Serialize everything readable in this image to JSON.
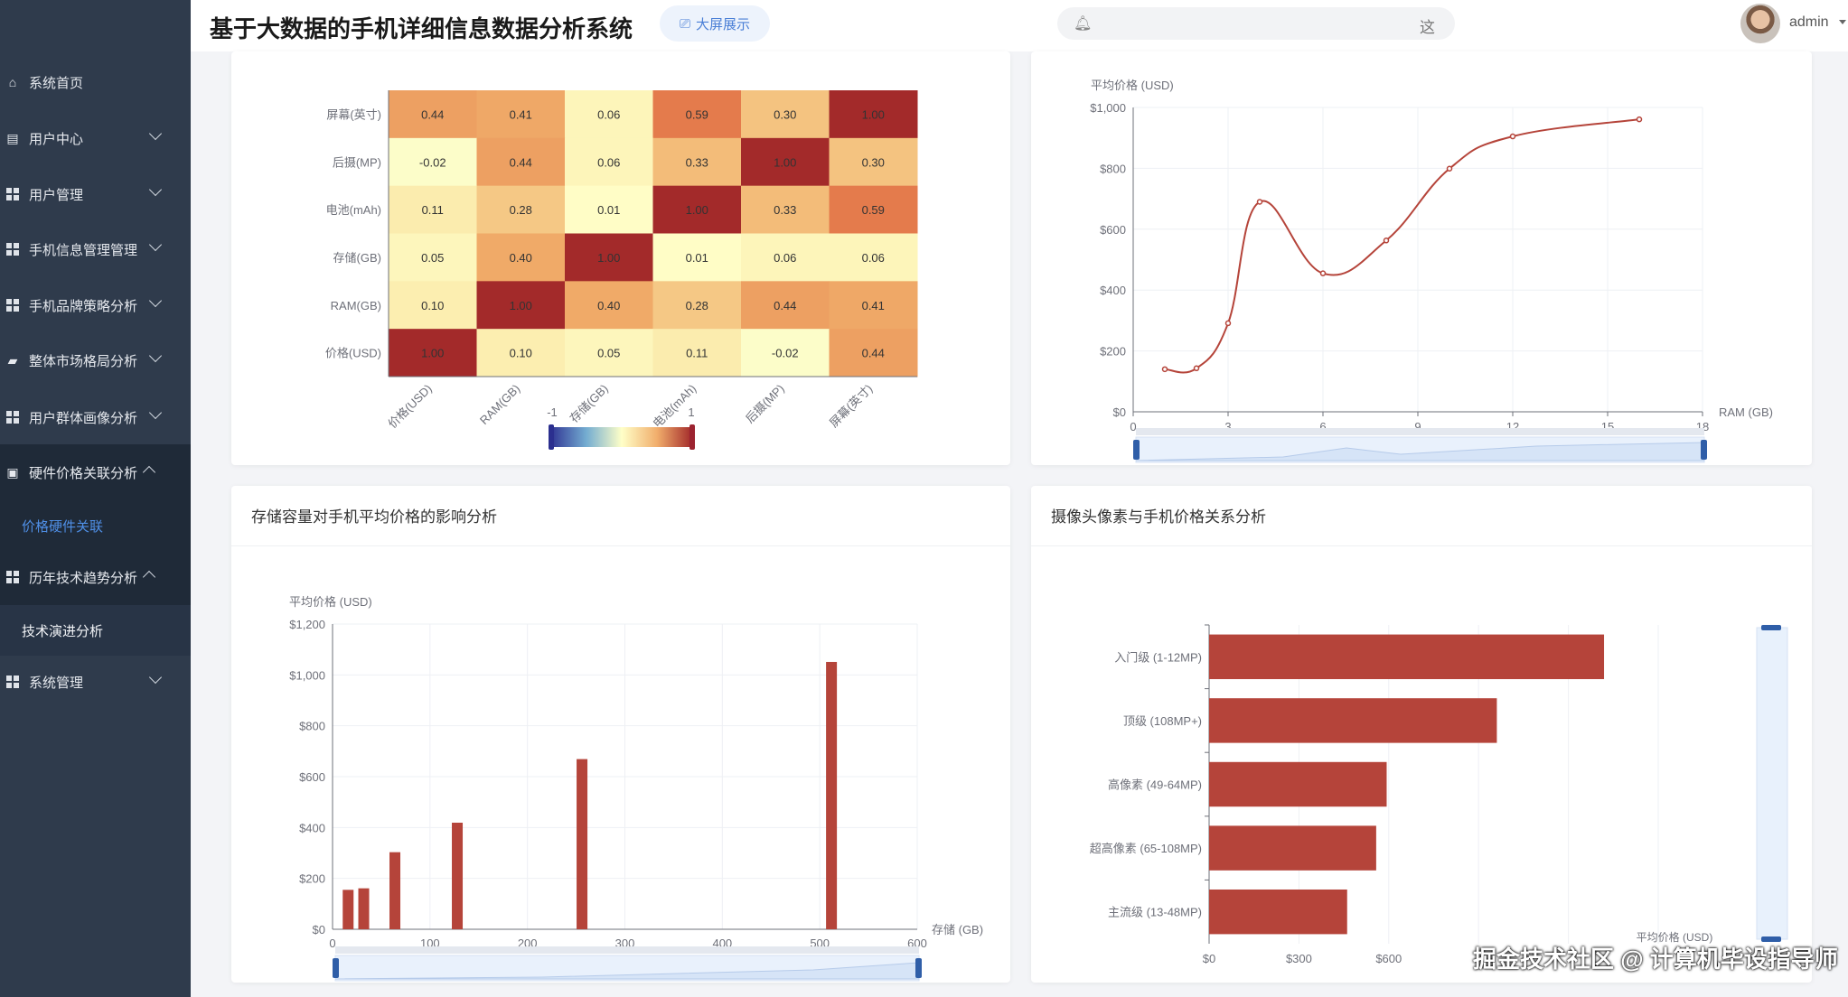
{
  "header": {
    "title": "基于大数据的手机详细信息数据分析系统",
    "big_screen_label": "大屏展示",
    "search_hint": "这",
    "username": "admin"
  },
  "sidebar": {
    "items": [
      {
        "label": "系统首页",
        "icon": "home-icon"
      },
      {
        "label": "用户中心",
        "icon": "wallet-icon"
      },
      {
        "label": "用户管理",
        "icon": "grid-icon"
      },
      {
        "label": "手机信息管理管理",
        "icon": "grid-icon"
      },
      {
        "label": "手机品牌策略分析",
        "icon": "grid-icon"
      },
      {
        "label": "整体市场格局分析",
        "icon": "chat-icon"
      },
      {
        "label": "用户群体画像分析",
        "icon": "grid-icon"
      },
      {
        "label": "硬件价格关联分析",
        "icon": "clipboard-icon",
        "expanded": true,
        "children": [
          "价格硬件关联"
        ]
      },
      {
        "label": "历年技术趋势分析",
        "icon": "grid-icon",
        "expanded": true,
        "children": [
          "技术演进分析"
        ]
      },
      {
        "label": "系统管理",
        "icon": "grid-icon"
      }
    ]
  },
  "colors": {
    "bar": "#b5443a",
    "accent": "#409eff",
    "sidebar": "#2f3b4c"
  },
  "cards": {
    "storage_title": "存储容量对手机平均价格的影响分析",
    "camera_title": "摄像头像素与手机价格关系分析"
  },
  "watermark": "掘金技术社区 @ 计算机毕设指导师",
  "chart_data": [
    {
      "type": "heatmap",
      "x_labels": [
        "价格(USD)",
        "RAM(GB)",
        "存储(GB)",
        "电池(mAh)",
        "后摄(MP)",
        "屏幕(英寸)"
      ],
      "y_labels": [
        "屏幕(英寸)",
        "后摄(MP)",
        "电池(mAh)",
        "存储(GB)",
        "RAM(GB)",
        "价格(USD)"
      ],
      "values": [
        [
          0.44,
          0.41,
          0.06,
          0.59,
          0.3,
          1.0
        ],
        [
          -0.02,
          0.44,
          0.06,
          0.33,
          1.0,
          0.3
        ],
        [
          0.11,
          0.28,
          0.01,
          1.0,
          0.33,
          0.59
        ],
        [
          0.05,
          0.4,
          1.0,
          0.01,
          0.06,
          0.06
        ],
        [
          0.1,
          1.0,
          0.4,
          0.28,
          0.44,
          0.41
        ],
        [
          1.0,
          0.1,
          0.05,
          0.11,
          -0.02,
          0.44
        ]
      ],
      "value_labels": [
        [
          "0.44",
          "0.41",
          "0.06",
          "0.59",
          "0.30",
          "1.00"
        ],
        [
          "-0.02",
          "0.44",
          "0.06",
          "0.33",
          "1.00",
          "0.30"
        ],
        [
          "0.11",
          "0.28",
          "0.01",
          "1.00",
          "0.33",
          "0.59"
        ],
        [
          "0.05",
          "0.40",
          "1.00",
          "0.01",
          "0.06",
          "0.06"
        ],
        [
          "0.10",
          "1.00",
          "0.40",
          "0.28",
          "0.44",
          "0.41"
        ],
        [
          "1.00",
          "0.10",
          "0.05",
          "0.11",
          "-0.02",
          "0.44"
        ]
      ],
      "visual_map": {
        "min": -1,
        "max": 1,
        "min_label": "-1",
        "max_label": "1"
      }
    },
    {
      "type": "line",
      "smooth": true,
      "xlabel": "RAM (GB)",
      "ylabel": "平均价格 (USD)",
      "xlim": [
        0,
        18
      ],
      "ylim": [
        0,
        1000
      ],
      "x_ticks": [
        "0",
        "3",
        "6",
        "9",
        "12",
        "15",
        "18"
      ],
      "y_ticks": [
        "$0",
        "$200",
        "$400",
        "$600",
        "$800",
        "$1,000"
      ],
      "x": [
        1,
        2,
        3,
        4,
        6,
        8,
        10,
        12,
        16
      ],
      "y": [
        140,
        143,
        291,
        690,
        455,
        563,
        799,
        905,
        961
      ],
      "grid": true,
      "datazoom": true
    },
    {
      "type": "bar",
      "xlabel": "存储 (GB)",
      "ylabel": "平均价格 (USD)",
      "xlim": [
        0,
        600
      ],
      "ylim": [
        0,
        1200
      ],
      "x_ticks": [
        "0",
        "100",
        "200",
        "300",
        "400",
        "500",
        "600"
      ],
      "y_ticks": [
        "$0",
        "$200",
        "$400",
        "$600",
        "$800",
        "$1,000",
        "$1,200"
      ],
      "x": [
        16,
        32,
        64,
        128,
        256,
        512
      ],
      "y": [
        155,
        161,
        303,
        419,
        669,
        1051
      ],
      "grid": true,
      "datazoom": true
    },
    {
      "type": "bar",
      "orientation": "horizontal",
      "xlabel": "平均价格 (USD)",
      "xlim": [
        0,
        1500
      ],
      "categories": [
        "入门级 (1-12MP)",
        "顶级 (108MP+)",
        "高像素 (49-64MP)",
        "超高像素 (65-108MP)",
        "主流级 (13-48MP)"
      ],
      "values": [
        1319,
        961,
        593,
        558,
        461
      ],
      "x_ticks": [
        "$0",
        "$300",
        "$600",
        "$900",
        "$1,200",
        "$1,500"
      ],
      "grid": true,
      "datazoom": true
    }
  ]
}
